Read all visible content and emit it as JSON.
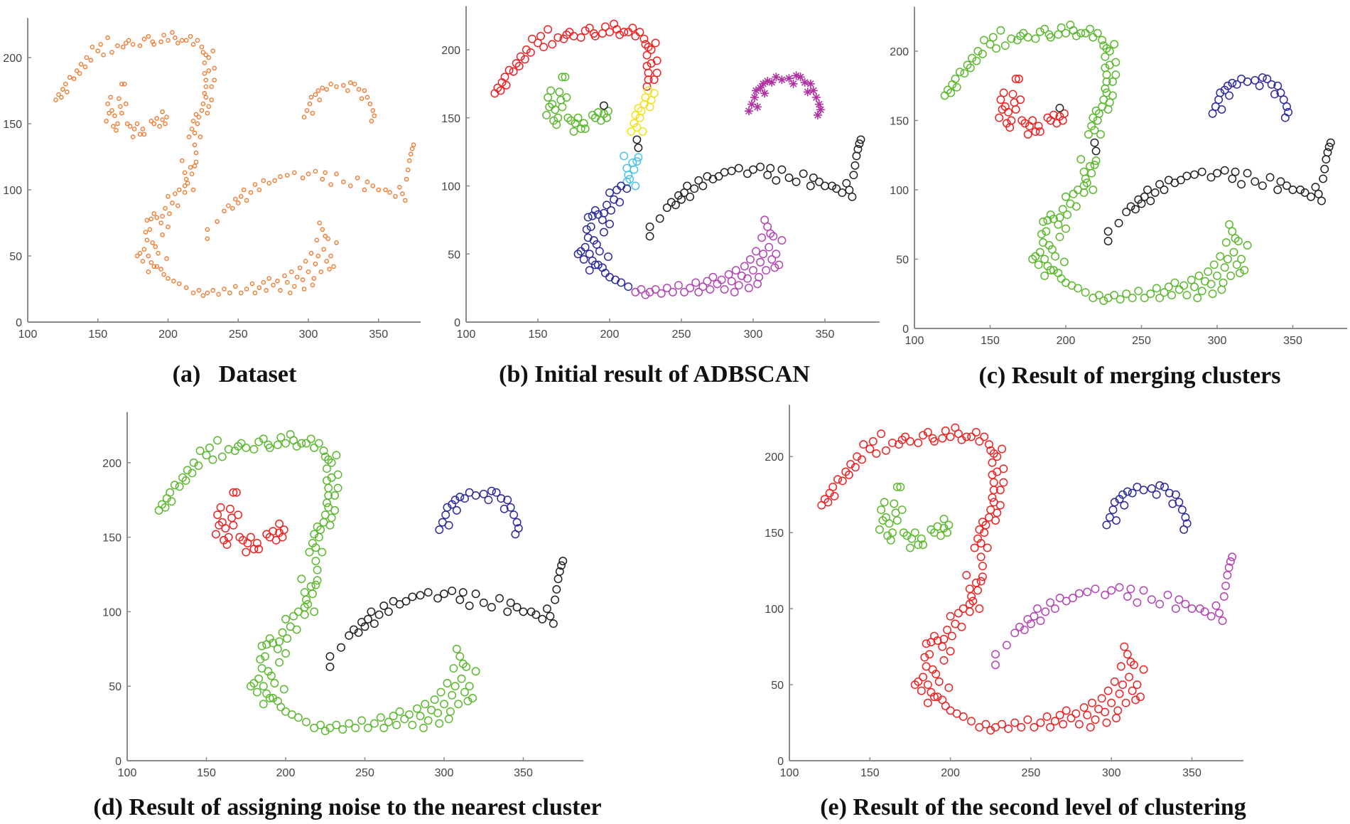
{
  "colors": {
    "orange": "#f27a30",
    "red": "#ee2222",
    "green": "#5cb82e",
    "blue": "#2b2b9e",
    "magenta": "#b244b4",
    "black": "#222222",
    "yellow": "#f2e21e",
    "cyan": "#4fc3e3",
    "purple": "#b02fa0",
    "axis": "#8a8a8a"
  },
  "shared_points": {
    "G1": [
      [
        120,
        168
      ],
      [
        122,
        172
      ],
      [
        124,
        170
      ],
      [
        125,
        176
      ],
      [
        127,
        180
      ],
      [
        128,
        174
      ],
      [
        130,
        185
      ],
      [
        133,
        184
      ],
      [
        135,
        190
      ],
      [
        137,
        188
      ],
      [
        138,
        195
      ],
      [
        141,
        193
      ],
      [
        142,
        200
      ],
      [
        145,
        198
      ],
      [
        146,
        208
      ],
      [
        150,
        205
      ],
      [
        152,
        210
      ],
      [
        154,
        202
      ],
      [
        157,
        215
      ],
      [
        160,
        204
      ],
      [
        164,
        209
      ],
      [
        168,
        208
      ],
      [
        170,
        211
      ],
      [
        172,
        213
      ],
      [
        175,
        210
      ],
      [
        180,
        209
      ],
      [
        183,
        214
      ],
      [
        186,
        216
      ],
      [
        189,
        212
      ],
      [
        190,
        210
      ],
      [
        195,
        212
      ],
      [
        197,
        217
      ],
      [
        200,
        213
      ],
      [
        203,
        219
      ],
      [
        205,
        215
      ],
      [
        207,
        211
      ],
      [
        210,
        213
      ],
      [
        213,
        213
      ],
      [
        216,
        216
      ],
      [
        218,
        210
      ],
      [
        221,
        213
      ],
      [
        224,
        208
      ],
      [
        225,
        204
      ],
      [
        227,
        202
      ],
      [
        229,
        200
      ],
      [
        232,
        205
      ],
      [
        226,
        196
      ],
      [
        229,
        190
      ],
      [
        226,
        188
      ],
      [
        233,
        192
      ],
      [
        227,
        183
      ],
      [
        233,
        183
      ],
      [
        231,
        178
      ],
      [
        226,
        173
      ],
      [
        227,
        178
      ]
    ],
    "G2": [
      [
        156,
        152
      ],
      [
        157,
        165
      ],
      [
        158,
        158
      ],
      [
        159,
        170
      ],
      [
        160,
        160
      ],
      [
        161,
        148
      ],
      [
        162,
        156
      ],
      [
        163,
        145
      ],
      [
        164,
        150
      ],
      [
        165,
        169
      ],
      [
        166,
        163
      ],
      [
        167,
        158
      ],
      [
        167,
        180
      ],
      [
        169,
        180
      ],
      [
        170,
        165
      ],
      [
        171,
        150
      ],
      [
        173,
        148
      ],
      [
        175,
        140
      ],
      [
        176,
        146
      ],
      [
        178,
        150
      ],
      [
        180,
        142
      ],
      [
        182,
        146
      ],
      [
        183,
        142
      ],
      [
        188,
        152
      ],
      [
        190,
        150
      ],
      [
        192,
        154
      ],
      [
        194,
        148
      ],
      [
        196,
        153
      ],
      [
        198,
        150
      ],
      [
        199,
        155
      ]
    ],
    "G4a": [
      [
        196,
        159
      ]
    ],
    "G4b": [
      [
        219,
        134
      ],
      [
        220,
        128
      ]
    ],
    "G3": [
      [
        215,
        140
      ],
      [
        217,
        146
      ],
      [
        218,
        152
      ],
      [
        219,
        143
      ],
      [
        220,
        157
      ],
      [
        221,
        150
      ],
      [
        222,
        155
      ],
      [
        224,
        160
      ],
      [
        225,
        165
      ],
      [
        227,
        170
      ],
      [
        229,
        163
      ],
      [
        231,
        168
      ],
      [
        228,
        158
      ],
      [
        223,
        140
      ]
    ],
    "G5": [
      [
        210,
        122
      ],
      [
        212,
        113
      ],
      [
        213,
        108
      ],
      [
        214,
        105
      ],
      [
        216,
        117
      ],
      [
        217,
        112
      ],
      [
        218,
        100
      ],
      [
        219,
        118
      ],
      [
        212,
        103
      ],
      [
        220,
        121
      ]
    ],
    "G6": [
      [
        208,
        100
      ],
      [
        205,
        97
      ],
      [
        212,
        98
      ],
      [
        200,
        95
      ],
      [
        203,
        90
      ],
      [
        198,
        86
      ],
      [
        207,
        88
      ],
      [
        201,
        82
      ],
      [
        196,
        80
      ],
      [
        192,
        79
      ],
      [
        188,
        78
      ],
      [
        185,
        77
      ],
      [
        190,
        82
      ],
      [
        195,
        75
      ],
      [
        187,
        70
      ],
      [
        200,
        72
      ],
      [
        185,
        62
      ],
      [
        189,
        60
      ],
      [
        191,
        57
      ],
      [
        183,
        55
      ],
      [
        180,
        52
      ],
      [
        178,
        50
      ],
      [
        186,
        50
      ],
      [
        193,
        52
      ],
      [
        182,
        46
      ],
      [
        188,
        45
      ],
      [
        192,
        42
      ],
      [
        195,
        40
      ],
      [
        186,
        38
      ],
      [
        197,
        36
      ],
      [
        200,
        33
      ],
      [
        204,
        31
      ],
      [
        208,
        29
      ],
      [
        213,
        26
      ],
      [
        190,
        42
      ],
      [
        184,
        68
      ],
      [
        196,
        66
      ],
      [
        199,
        48
      ]
    ],
    "G7": [
      [
        218,
        22
      ],
      [
        222,
        24
      ],
      [
        225,
        20
      ],
      [
        228,
        22
      ],
      [
        232,
        24
      ],
      [
        236,
        21
      ],
      [
        240,
        25
      ],
      [
        244,
        22
      ],
      [
        248,
        27
      ],
      [
        252,
        22
      ],
      [
        256,
        25
      ],
      [
        260,
        29
      ],
      [
        262,
        22
      ],
      [
        265,
        26
      ],
      [
        268,
        30
      ],
      [
        270,
        24
      ],
      [
        272,
        33
      ],
      [
        275,
        28
      ],
      [
        278,
        31
      ],
      [
        280,
        24
      ],
      [
        283,
        35
      ],
      [
        285,
        30
      ],
      [
        288,
        38
      ],
      [
        290,
        27
      ],
      [
        292,
        34
      ],
      [
        294,
        41
      ],
      [
        296,
        32
      ],
      [
        298,
        46
      ],
      [
        300,
        38
      ],
      [
        302,
        52
      ],
      [
        304,
        33
      ],
      [
        305,
        44
      ],
      [
        306,
        62
      ],
      [
        307,
        50
      ],
      [
        308,
        75
      ],
      [
        309,
        38
      ],
      [
        310,
        70
      ],
      [
        311,
        55
      ],
      [
        312,
        65
      ],
      [
        313,
        46
      ],
      [
        314,
        63
      ],
      [
        316,
        50
      ],
      [
        318,
        42
      ],
      [
        320,
        60
      ],
      [
        315,
        40
      ],
      [
        303,
        28
      ],
      [
        297,
        25
      ],
      [
        287,
        22
      ]
    ],
    "G8": [
      [
        228,
        63
      ],
      [
        228,
        70
      ],
      [
        235,
        76
      ],
      [
        240,
        84
      ],
      [
        243,
        88
      ],
      [
        246,
        86
      ],
      [
        248,
        93
      ],
      [
        250,
        90
      ],
      [
        252,
        95
      ],
      [
        254,
        100
      ],
      [
        256,
        92
      ],
      [
        259,
        98
      ],
      [
        262,
        104
      ],
      [
        265,
        100
      ],
      [
        268,
        107
      ],
      [
        272,
        105
      ],
      [
        276,
        107
      ],
      [
        280,
        110
      ],
      [
        285,
        111
      ],
      [
        290,
        113
      ],
      [
        296,
        109
      ],
      [
        300,
        112
      ],
      [
        305,
        114
      ],
      [
        310,
        108
      ],
      [
        312,
        113
      ],
      [
        316,
        104
      ],
      [
        320,
        112
      ],
      [
        325,
        106
      ],
      [
        330,
        103
      ],
      [
        335,
        109
      ],
      [
        340,
        100
      ],
      [
        342,
        106
      ],
      [
        346,
        103
      ],
      [
        350,
        100
      ],
      [
        355,
        100
      ],
      [
        358,
        98
      ],
      [
        362,
        95
      ],
      [
        365,
        102
      ],
      [
        367,
        97
      ],
      [
        370,
        108
      ],
      [
        371,
        115
      ],
      [
        372,
        122
      ],
      [
        373,
        127
      ],
      [
        374,
        131
      ],
      [
        375,
        134
      ],
      [
        369,
        92
      ]
    ],
    "G9": [
      [
        297,
        155
      ],
      [
        299,
        160
      ],
      [
        301,
        165
      ],
      [
        302,
        170
      ],
      [
        305,
        172
      ],
      [
        307,
        175
      ],
      [
        310,
        177
      ],
      [
        313,
        176
      ],
      [
        316,
        180
      ],
      [
        320,
        178
      ],
      [
        325,
        179
      ],
      [
        328,
        175
      ],
      [
        330,
        181
      ],
      [
        333,
        180
      ],
      [
        336,
        176
      ],
      [
        340,
        175
      ],
      [
        342,
        170
      ],
      [
        344,
        165
      ],
      [
        346,
        160
      ],
      [
        347,
        156
      ],
      [
        345,
        152
      ],
      [
        338,
        169
      ],
      [
        303,
        158
      ],
      [
        308,
        168
      ]
    ]
  },
  "chart_data": [
    {
      "type": "scatter",
      "caption": "(a)   Dataset",
      "xlim": [
        100,
        380
      ],
      "ylim": [
        0,
        230
      ],
      "xticks": [
        "100",
        "150",
        "200",
        "250",
        "300",
        "350"
      ],
      "yticks": [
        "0",
        "50",
        "100",
        "150",
        "200"
      ],
      "grid": false,
      "series": [
        {
          "color": "orange",
          "marker": "small-circle",
          "groups": [
            "G1",
            "G2",
            "G4a",
            "G4b",
            "G3",
            "G5",
            "G6",
            "G7",
            "G8",
            "G9"
          ]
        }
      ]
    },
    {
      "type": "scatter",
      "caption": "(b) Initial result of ADBSCAN",
      "xlim": [
        100,
        388
      ],
      "ylim": [
        0,
        232
      ],
      "xticks": [
        "100",
        "150",
        "200",
        "250",
        "300",
        "350"
      ],
      "yticks": [
        "0",
        "50",
        "100",
        "150",
        "200"
      ],
      "grid": false,
      "series": [
        {
          "color": "red",
          "marker": "circle",
          "groups": [
            "G1"
          ]
        },
        {
          "color": "green",
          "marker": "circle",
          "groups": [
            "G2"
          ]
        },
        {
          "color": "yellow",
          "marker": "circle",
          "groups": [
            "G3"
          ]
        },
        {
          "color": "cyan",
          "marker": "circle",
          "groups": [
            "G5"
          ]
        },
        {
          "color": "blue",
          "marker": "circle",
          "groups": [
            "G6"
          ]
        },
        {
          "color": "magenta",
          "marker": "circle",
          "groups": [
            "G7"
          ]
        },
        {
          "color": "black",
          "marker": "circle",
          "groups": [
            "G4a",
            "G4b",
            "G8"
          ]
        },
        {
          "color": "purple",
          "marker": "asterisk",
          "groups": [
            "G9"
          ]
        }
      ]
    },
    {
      "type": "scatter",
      "caption": "(c) Result of merging clusters",
      "xlim": [
        100,
        386
      ],
      "ylim": [
        0,
        232
      ],
      "xticks": [
        "100",
        "150",
        "200",
        "250",
        "300",
        "350"
      ],
      "yticks": [
        "0",
        "50",
        "100",
        "150",
        "200"
      ],
      "grid": false,
      "series": [
        {
          "color": "green",
          "marker": "circle",
          "groups": [
            "G1",
            "G3",
            "G5",
            "G6",
            "G7"
          ]
        },
        {
          "color": "red",
          "marker": "circle",
          "groups": [
            "G2"
          ]
        },
        {
          "color": "black",
          "marker": "circle",
          "groups": [
            "G4a",
            "G4b",
            "G8"
          ]
        },
        {
          "color": "blue",
          "marker": "circle",
          "groups": [
            "G9"
          ]
        }
      ]
    },
    {
      "type": "scatter",
      "caption": "(d) Result of assigning noise to the nearest cluster",
      "xlim": [
        100,
        388
      ],
      "ylim": [
        0,
        234
      ],
      "xticks": [
        "100",
        "150",
        "200",
        "250",
        "300",
        "350"
      ],
      "yticks": [
        "0",
        "50",
        "100",
        "150",
        "200"
      ],
      "grid": false,
      "series": [
        {
          "color": "green",
          "marker": "circle",
          "groups": [
            "G1",
            "G3",
            "G4b",
            "G5",
            "G6",
            "G7"
          ]
        },
        {
          "color": "red",
          "marker": "circle",
          "groups": [
            "G2",
            "G4a"
          ]
        },
        {
          "color": "black",
          "marker": "circle",
          "groups": [
            "G8"
          ]
        },
        {
          "color": "blue",
          "marker": "circle",
          "groups": [
            "G9"
          ]
        }
      ]
    },
    {
      "type": "scatter",
      "caption": "(e) Result of the second level of clustering",
      "xlim": [
        100,
        382
      ],
      "ylim": [
        0,
        234
      ],
      "xticks": [
        "100",
        "150",
        "200",
        "250",
        "300",
        "350"
      ],
      "yticks": [
        "0",
        "50",
        "100",
        "150",
        "200"
      ],
      "grid": false,
      "series": [
        {
          "color": "red",
          "marker": "circle",
          "groups": [
            "G1",
            "G3",
            "G4b",
            "G5",
            "G6",
            "G7"
          ]
        },
        {
          "color": "green",
          "marker": "circle",
          "groups": [
            "G2",
            "G4a"
          ]
        },
        {
          "color": "magenta",
          "marker": "circle",
          "groups": [
            "G8"
          ]
        },
        {
          "color": "blue",
          "marker": "circle",
          "groups": [
            "G9"
          ]
        }
      ]
    }
  ]
}
